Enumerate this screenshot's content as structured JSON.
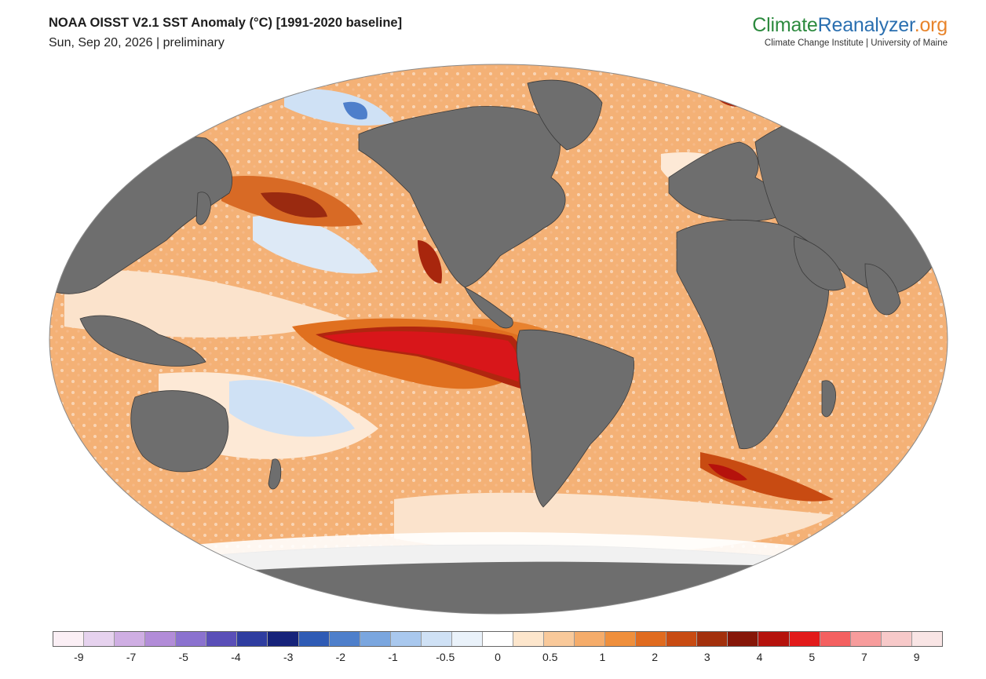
{
  "header": {
    "title": "NOAA OISST V2.1 SST Anomaly (°C) [1991-2020 baseline]",
    "subtitle": "Sun, Sep 20, 2026 | preliminary"
  },
  "brand": {
    "name_part1": "Climate",
    "name_part2": "Reanalyzer",
    "name_part3": ".org",
    "sub": "Climate Change Institute | University of Maine"
  },
  "colorbar": {
    "colors": [
      "#fbeff5",
      "#e6d2ee",
      "#cfaee3",
      "#b28cd8",
      "#8b72cf",
      "#5a4fb8",
      "#2f3da0",
      "#16237a",
      "#2f5bb5",
      "#4e7fcb",
      "#7aa6df",
      "#a9c8ee",
      "#cfe1f5",
      "#eaf2fa",
      "#ffffff",
      "#fde6cc",
      "#f9c99a",
      "#f5ac6a",
      "#ef8f3c",
      "#e06b1f",
      "#c84b12",
      "#a3300c",
      "#861608",
      "#b5120c",
      "#e21a1a",
      "#f46060",
      "#f79c9c",
      "#f7c9c9",
      "#f9e5e5"
    ],
    "tick_labels": [
      "-9",
      "-7",
      "-5",
      "-4",
      "-3",
      "-2",
      "-1",
      "-0.5",
      "0",
      "0.5",
      "1",
      "2",
      "3",
      "4",
      "5",
      "7",
      "9"
    ]
  },
  "map": {
    "colors": {
      "land": "#6e6e6e",
      "ocean_warm": "#f4b176",
      "ocean_pale": "#fbe3cc",
      "hot_core": "#d8161a",
      "hot_edge": "#b0260f",
      "cool": "#cfe1f5",
      "ice": "#ffffff"
    }
  }
}
